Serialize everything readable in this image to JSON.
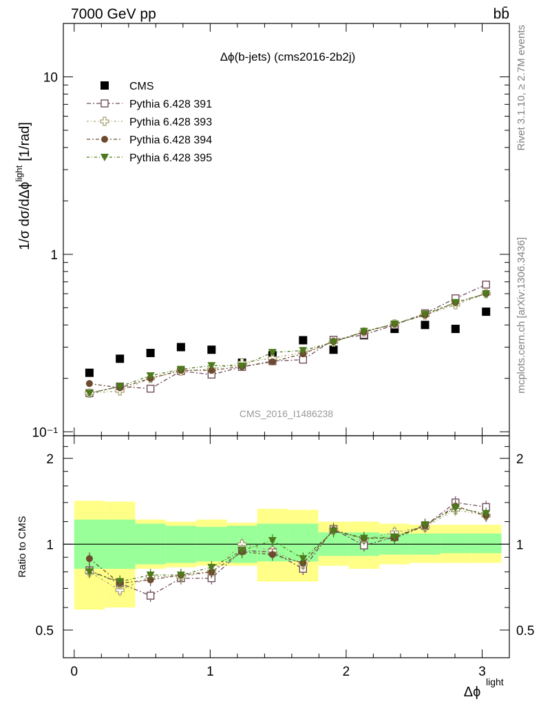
{
  "header": {
    "energy_label": "7000 GeV pp",
    "process_label": "bb̄"
  },
  "side_labels": {
    "rivet": "Rivet 3.1.10, ≥ 2.7M events",
    "mcplots": "mcplots.cern.ch [arXiv:1306.3436]"
  },
  "colors": {
    "band_inner": "#99ff99",
    "band_outer": "#ffff88",
    "cms": "#000000",
    "p391": "#6e4a5a",
    "p393": "#a8a070",
    "p394": "#6b4a2e",
    "p395": "#4d7a1a"
  },
  "chart_data": {
    "type": "scatter",
    "title": "Δϕ(b-jets) (cms2016-2b2j)",
    "watermark": "CMS_2016_I1486238",
    "xlabel": "Δϕ",
    "xlabel_sup": "light",
    "ylabel": "1/σ dσ/dΔϕ",
    "ylabel_sup": "light",
    "ylabel_unit": "[1/rad]",
    "ratio_ylabel": "Ratio to CMS",
    "xlim": [
      -0.08,
      3.2
    ],
    "ylim": [
      0.095,
      20
    ],
    "yscale": "log",
    "ratio_ylim": [
      0.4,
      2.4
    ],
    "ratio_yscale": "log",
    "x_ticks": [
      "0",
      "1",
      "2",
      "3"
    ],
    "y_ticks": [
      "10⁻¹",
      "1",
      "10"
    ],
    "ratio_ticks": [
      "0.5",
      "1",
      "2"
    ],
    "legend_position": "top-left",
    "x": [
      0.112,
      0.336,
      0.561,
      0.785,
      1.01,
      1.234,
      1.458,
      1.683,
      1.907,
      2.131,
      2.356,
      2.58,
      2.804,
      3.029
    ],
    "bin_edges": [
      0.0,
      0.224,
      0.449,
      0.673,
      0.898,
      1.122,
      1.346,
      1.571,
      1.795,
      2.019,
      2.244,
      2.468,
      2.693,
      2.917,
      3.142
    ],
    "band_inner": [
      [
        0.82,
        1.22
      ],
      [
        0.82,
        1.22
      ],
      [
        0.85,
        1.18
      ],
      [
        0.86,
        1.16
      ],
      [
        0.87,
        1.15
      ],
      [
        0.86,
        1.16
      ],
      [
        0.87,
        1.18
      ],
      [
        0.87,
        1.18
      ],
      [
        0.91,
        1.1
      ],
      [
        0.91,
        1.1
      ],
      [
        0.92,
        1.09
      ],
      [
        0.92,
        1.09
      ],
      [
        0.93,
        1.09
      ],
      [
        0.93,
        1.09
      ]
    ],
    "band_outer": [
      [
        0.59,
        1.42
      ],
      [
        0.6,
        1.41
      ],
      [
        0.82,
        1.22
      ],
      [
        0.83,
        1.2
      ],
      [
        0.84,
        1.22
      ],
      [
        0.84,
        1.19
      ],
      [
        0.74,
        1.33
      ],
      [
        0.74,
        1.32
      ],
      [
        0.84,
        1.2
      ],
      [
        0.82,
        1.2
      ],
      [
        0.85,
        1.18
      ],
      [
        0.86,
        1.17
      ],
      [
        0.86,
        1.17
      ],
      [
        0.86,
        1.17
      ]
    ],
    "series": [
      {
        "name": "CMS",
        "marker": "square-filled",
        "values": [
          0.215,
          0.258,
          0.278,
          0.3,
          0.29,
          0.245,
          0.27,
          0.328,
          0.29,
          0.35,
          0.38,
          0.4,
          0.38,
          0.475
        ]
      },
      {
        "name": "Pythia 6.428 391",
        "marker": "square-open",
        "values": [
          0.165,
          0.18,
          0.175,
          0.22,
          0.21,
          0.232,
          0.25,
          0.255,
          0.33,
          0.352,
          0.4,
          0.465,
          0.565,
          0.675
        ],
        "ratio": [
          0.81,
          0.73,
          0.66,
          0.76,
          0.76,
          0.95,
          0.94,
          0.82,
          1.13,
          0.99,
          1.06,
          1.16,
          1.4,
          1.35
        ]
      },
      {
        "name": "Pythia 6.428 393",
        "marker": "cross-open",
        "values": [
          0.165,
          0.17,
          0.2,
          0.22,
          0.225,
          0.245,
          0.26,
          0.28,
          0.32,
          0.365,
          0.405,
          0.455,
          0.52,
          0.6
        ],
        "ratio": [
          0.8,
          0.69,
          0.77,
          0.77,
          0.8,
          1.0,
          0.95,
          0.85,
          1.12,
          1.04,
          1.1,
          1.15,
          1.32,
          1.26
        ]
      },
      {
        "name": "Pythia 6.428 394",
        "marker": "circle-filled",
        "values": [
          0.187,
          0.177,
          0.2,
          0.222,
          0.222,
          0.233,
          0.248,
          0.275,
          0.323,
          0.365,
          0.405,
          0.455,
          0.535,
          0.6
        ],
        "ratio": [
          0.89,
          0.73,
          0.75,
          0.78,
          0.8,
          0.94,
          0.92,
          0.86,
          1.12,
          1.05,
          1.05,
          1.16,
          1.36,
          1.26
        ]
      },
      {
        "name": "Pythia 6.428 395",
        "marker": "triangle-down-filled",
        "values": [
          0.165,
          0.18,
          0.207,
          0.225,
          0.236,
          0.235,
          0.28,
          0.287,
          0.32,
          0.368,
          0.405,
          0.46,
          0.535,
          0.6
        ],
        "ratio": [
          0.8,
          0.74,
          0.78,
          0.78,
          0.83,
          0.95,
          1.03,
          0.89,
          1.11,
          1.05,
          1.06,
          1.17,
          1.34,
          1.28
        ]
      }
    ]
  }
}
